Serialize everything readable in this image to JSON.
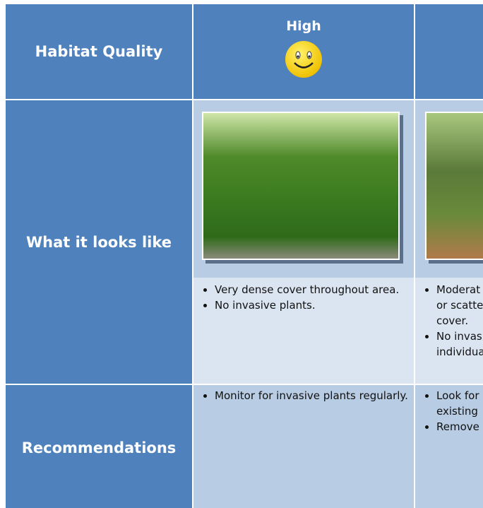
{
  "table": {
    "header": {
      "row_label": "Habitat Quality",
      "columns": [
        "High"
      ]
    },
    "rows": [
      {
        "label": "What it looks like",
        "high": [
          "Very dense cover throughout area.",
          "No invasive plants."
        ],
        "next": [
          [
            "Moderat",
            "or scatte",
            "cover."
          ],
          [
            "No invas",
            "individua"
          ]
        ]
      },
      {
        "label": "Recommendations",
        "high": [
          "Monitor for invasive plants regularly."
        ],
        "next": [
          [
            "Look for",
            "existing"
          ],
          [
            "Remove"
          ]
        ]
      }
    ]
  }
}
